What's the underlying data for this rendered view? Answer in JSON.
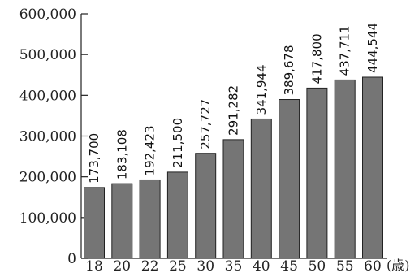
{
  "chart_data": {
    "type": "bar",
    "categories": [
      "18",
      "20",
      "22",
      "25",
      "30",
      "35",
      "40",
      "45",
      "50",
      "55",
      "60"
    ],
    "values": [
      173700,
      183108,
      192423,
      211500,
      257727,
      291282,
      341944,
      389678,
      417800,
      437711,
      444544
    ],
    "value_labels": [
      "173,700",
      "183,108",
      "192,423",
      "211,500",
      "257,727",
      "291,282",
      "341,944",
      "389,678",
      "417,800",
      "437,711",
      "444,544"
    ],
    "ylim": [
      0,
      600000
    ],
    "yticks": [
      0,
      100000,
      200000,
      300000,
      400000,
      500000,
      600000
    ],
    "ytick_labels": [
      "0",
      "100,000",
      "200,000",
      "300,000",
      "400,000",
      "500,000",
      "600,000"
    ],
    "x_unit": "(歳)",
    "bar_color": "#757575",
    "bar_edge_color": "#222222",
    "grid": false,
    "legend": "none"
  }
}
